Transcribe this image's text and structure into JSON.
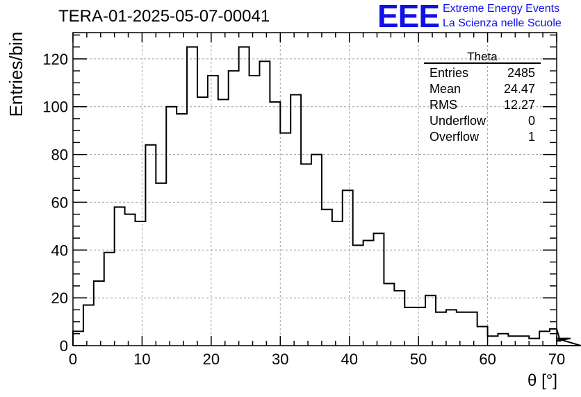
{
  "header": {
    "title": "TERA-01-2025-05-07-00041",
    "logo_mark": "EEE",
    "logo_line1": "Extreme Energy Events",
    "logo_line2": "La Scienza nelle Scuole"
  },
  "stats_box": {
    "title": "Theta",
    "rows": [
      {
        "label": "Entries",
        "value": "2485"
      },
      {
        "label": "Mean",
        "value": "24.47"
      },
      {
        "label": "RMS",
        "value": "12.27"
      },
      {
        "label": "Underflow",
        "value": "0"
      },
      {
        "label": "Overflow",
        "value": "1"
      }
    ]
  },
  "colors": {
    "line": "#000000",
    "grid": "#a0a0a0",
    "logo": "#1010e8"
  },
  "chart_data": {
    "type": "bar",
    "style": "step-histogram",
    "xlabel": "θ [°]",
    "ylabel": "Entries/bin",
    "xlim": [
      0,
      70
    ],
    "ylim": [
      0,
      131
    ],
    "bin_width": 1.5,
    "xticks": [
      0,
      10,
      20,
      30,
      40,
      50,
      60,
      70
    ],
    "yticks": [
      0,
      20,
      40,
      60,
      80,
      100,
      120
    ],
    "grid": true,
    "values": [
      6,
      17,
      27,
      39,
      58,
      55,
      52,
      84,
      68,
      100,
      97,
      125,
      104,
      113,
      103,
      115,
      125,
      113,
      119,
      102,
      89,
      105,
      76,
      80,
      57,
      52,
      65,
      42,
      44,
      47,
      26,
      23,
      16,
      16,
      21,
      14,
      15,
      14,
      14,
      8,
      4,
      5,
      4,
      4,
      3,
      6,
      7,
      2,
      3,
      0
    ]
  }
}
